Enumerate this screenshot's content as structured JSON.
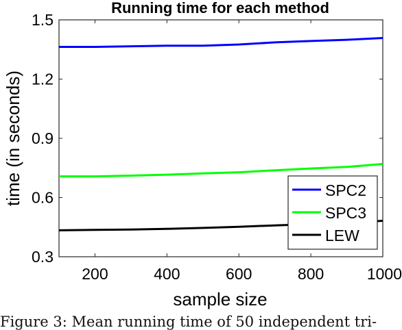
{
  "chart_data": {
    "type": "line",
    "title": "Running time for each method",
    "xlabel": "sample size",
    "ylabel": "time (in seconds)",
    "xlim": [
      100,
      1000
    ],
    "ylim": [
      0.3,
      1.5
    ],
    "xticks": [
      200,
      400,
      600,
      800,
      1000
    ],
    "xtick_labels": [
      "200",
      "400",
      "600",
      "800",
      "1000"
    ],
    "yticks": [
      0.3,
      0.6,
      0.9,
      1.2,
      1.5
    ],
    "ytick_labels": [
      "0.3",
      "0.6",
      "0.9",
      "1.2",
      "1.5"
    ],
    "grid": false,
    "legend_position": "bottom-right",
    "x": [
      100,
      200,
      300,
      400,
      500,
      600,
      700,
      800,
      900,
      1000
    ],
    "series": [
      {
        "name": "SPC2",
        "color": "#0000ff",
        "values": [
          1.363,
          1.363,
          1.366,
          1.369,
          1.369,
          1.375,
          1.386,
          1.393,
          1.399,
          1.408
        ]
      },
      {
        "name": "SPC3",
        "color": "#00ff00",
        "values": [
          0.707,
          0.707,
          0.711,
          0.716,
          0.722,
          0.728,
          0.738,
          0.747,
          0.755,
          0.77
        ]
      },
      {
        "name": "LEW",
        "color": "#000000",
        "values": [
          0.434,
          0.436,
          0.438,
          0.441,
          0.446,
          0.452,
          0.459,
          0.465,
          0.472,
          0.482
        ]
      }
    ]
  },
  "caption": "Figure 3: Mean running time of 50 independent tri-"
}
